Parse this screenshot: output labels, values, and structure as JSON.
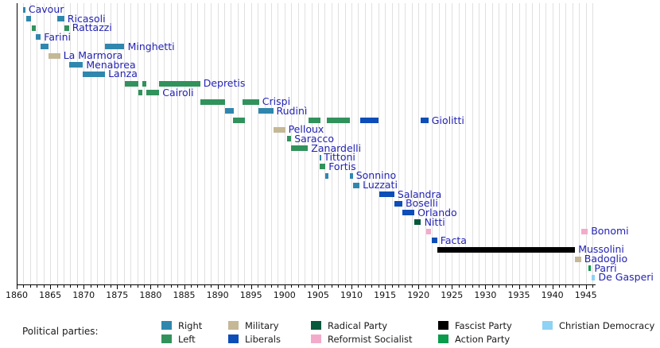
{
  "parties": {
    "right": {
      "label": "Right",
      "color": "#2f87ae"
    },
    "left": {
      "label": "Left",
      "color": "#31925c"
    },
    "military": {
      "label": "Military",
      "color": "#c5b897"
    },
    "liberals": {
      "label": "Liberals",
      "color": "#0d4db8"
    },
    "radical": {
      "label": "Radical Party",
      "color": "#07583c"
    },
    "reformist": {
      "label": "Reformist Socialist",
      "color": "#f3abcb"
    },
    "fascist": {
      "label": "Fascist Party",
      "color": "#000000"
    },
    "action": {
      "label": "Action Party",
      "color": "#0a9b4b"
    },
    "christian": {
      "label": "Christian Democracy",
      "color": "#8ed2f4"
    }
  },
  "legend": {
    "heading": "Political parties:",
    "columns": [
      [
        "right",
        "left"
      ],
      [
        "military",
        "liberals"
      ],
      [
        "radical",
        "reformist"
      ],
      [
        "fascist",
        "action"
      ],
      [
        "christian"
      ]
    ]
  },
  "chart_data": {
    "type": "timeline",
    "x_axis": {
      "min": 1860,
      "max": 1946.5,
      "minor_tick_step": 1,
      "major_tick_step": 5,
      "tick_labels": [
        "1860",
        "1865",
        "1870",
        "1875",
        "1880",
        "1885",
        "1890",
        "1895",
        "1900",
        "1905",
        "1910",
        "1915",
        "1920",
        "1925",
        "1930",
        "1935",
        "1940",
        "1945"
      ]
    },
    "grid": {
      "show_vertical_yearly": true,
      "color": "#e0e0e0"
    },
    "label_color": "#2323b4",
    "rows": [
      {
        "name": "Cavour",
        "bars": [
          [
            1860.9,
            1861.3,
            "right"
          ]
        ]
      },
      {
        "name": "Ricasoli",
        "bars": [
          [
            1861.4,
            1862.2,
            "right"
          ],
          [
            1866.0,
            1867.1,
            "right"
          ]
        ]
      },
      {
        "name": "Rattazzi",
        "bars": [
          [
            1862.2,
            1862.9,
            "left"
          ],
          [
            1867.1,
            1867.8,
            "left"
          ]
        ]
      },
      {
        "name": "Farini",
        "bars": [
          [
            1862.9,
            1863.6,
            "right"
          ]
        ]
      },
      {
        "name": "Minghetti",
        "bars": [
          [
            1863.6,
            1864.8,
            "right"
          ],
          [
            1873.2,
            1876.1,
            "right"
          ]
        ]
      },
      {
        "name": "La Marmora",
        "bars": [
          [
            1864.8,
            1866.5,
            "military"
          ]
        ]
      },
      {
        "name": "Menabrea",
        "bars": [
          [
            1867.8,
            1869.9,
            "right"
          ]
        ]
      },
      {
        "name": "Lanza",
        "bars": [
          [
            1869.9,
            1873.2,
            "right"
          ]
        ]
      },
      {
        "name": "Depretis",
        "bars": [
          [
            1876.1,
            1878.2,
            "left"
          ],
          [
            1878.8,
            1879.4,
            "left"
          ],
          [
            1881.3,
            1887.4,
            "left"
          ]
        ]
      },
      {
        "name": "Cairoli",
        "bars": [
          [
            1878.2,
            1878.8,
            "left"
          ],
          [
            1879.4,
            1881.3,
            "left"
          ]
        ]
      },
      {
        "name": "Crispi",
        "bars": [
          [
            1887.4,
            1891.1,
            "left"
          ],
          [
            1893.7,
            1896.2,
            "left"
          ]
        ]
      },
      {
        "name": "Rudinì",
        "bars": [
          [
            1891.1,
            1892.4,
            "right"
          ],
          [
            1896.1,
            1898.3,
            "right"
          ]
        ]
      },
      {
        "name": "Giolitti",
        "bars": [
          [
            1892.3,
            1894.1,
            "left"
          ],
          [
            1903.6,
            1905.4,
            "left"
          ],
          [
            1906.3,
            1909.8,
            "left"
          ],
          [
            1911.3,
            1914.1,
            "liberals"
          ],
          [
            1920.3,
            1921.5,
            "liberals"
          ]
        ]
      },
      {
        "name": "Pelloux",
        "bars": [
          [
            1898.3,
            1900.1,
            "military"
          ]
        ]
      },
      {
        "name": "Saracco",
        "bars": [
          [
            1900.4,
            1901.0,
            "left"
          ]
        ]
      },
      {
        "name": "Zanardelli",
        "bars": [
          [
            1901.0,
            1903.5,
            "left"
          ]
        ]
      },
      {
        "name": "Tittoni",
        "bars": [
          [
            1905.2,
            1905.4,
            "right"
          ]
        ]
      },
      {
        "name": "Fortis",
        "bars": [
          [
            1905.3,
            1906.1,
            "left"
          ]
        ]
      },
      {
        "name": "Sonnino",
        "bars": [
          [
            1906.1,
            1906.5,
            "right"
          ],
          [
            1909.8,
            1910.2,
            "right"
          ]
        ]
      },
      {
        "name": "Luzzati",
        "bars": [
          [
            1910.2,
            1911.2,
            "right"
          ]
        ]
      },
      {
        "name": "Salandra",
        "bars": [
          [
            1914.1,
            1916.4,
            "liberals"
          ]
        ]
      },
      {
        "name": "Boselli",
        "bars": [
          [
            1916.4,
            1917.6,
            "liberals"
          ]
        ]
      },
      {
        "name": "Orlando",
        "bars": [
          [
            1917.6,
            1919.4,
            "liberals"
          ]
        ]
      },
      {
        "name": "Nitti",
        "bars": [
          [
            1919.4,
            1920.4,
            "radical"
          ]
        ]
      },
      {
        "name": "Bonomi",
        "bars": [
          [
            1921.2,
            1921.9,
            "reformist"
          ],
          [
            1944.3,
            1945.3,
            "reformist"
          ]
        ]
      },
      {
        "name": "Facta",
        "bars": [
          [
            1922.0,
            1922.8,
            "liberals"
          ]
        ]
      },
      {
        "name": "Mussolini",
        "bars": [
          [
            1922.8,
            1943.4,
            "fascist"
          ]
        ]
      },
      {
        "name": "Badoglio",
        "bars": [
          [
            1943.4,
            1944.3,
            "military"
          ]
        ]
      },
      {
        "name": "Parri",
        "bars": [
          [
            1945.4,
            1945.8,
            "action"
          ]
        ]
      },
      {
        "name": "De Gasperi",
        "bars": [
          [
            1945.9,
            1946.4,
            "christian"
          ]
        ]
      }
    ]
  }
}
